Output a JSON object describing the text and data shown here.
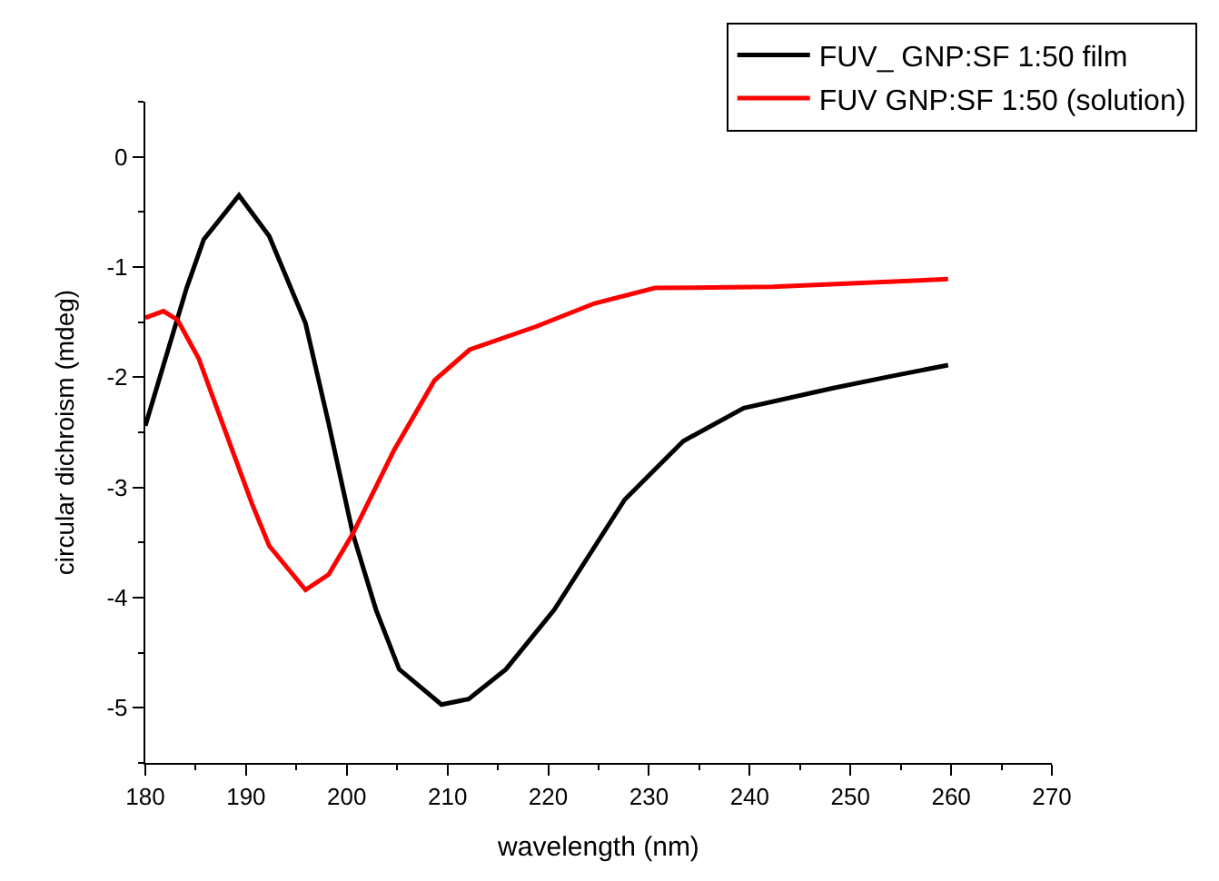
{
  "chart_data": {
    "type": "line",
    "xlabel": "wavelength (nm)",
    "ylabel": "circular dichroism (mdeg)",
    "xlim": [
      180,
      270
    ],
    "xticks": [
      180,
      190,
      200,
      210,
      220,
      230,
      240,
      250,
      260,
      270
    ],
    "ylim": [
      -5.5,
      0.5
    ],
    "yticks": [
      -5,
      -4,
      -3,
      -2,
      -1,
      0
    ],
    "legend": "top right",
    "line_style": "solid",
    "marker": "none",
    "series": [
      {
        "name": "FUV_ GNP:SF 1:50 film",
        "color": "#000000",
        "x": [
          180,
          184.1,
          185.8,
          189.3,
          192.3,
          195.9,
          198.2,
          200.6,
          202.9,
          205.2,
          209.4,
          212.1,
          215.8,
          220.6,
          227.6,
          233.4,
          239.4,
          248.2,
          254.1,
          259.7
        ],
        "values": [
          -2.44,
          -1.19,
          -0.75,
          -0.35,
          -0.72,
          -1.51,
          -2.42,
          -3.42,
          -4.11,
          -4.65,
          -4.97,
          -4.92,
          -4.65,
          -4.11,
          -3.11,
          -2.58,
          -2.28,
          -2.1,
          -1.99,
          -1.89
        ]
      },
      {
        "name": "FUV GNP:SF 1:50 (solution)",
        "color": "#ff0000",
        "x": [
          180,
          181.8,
          183.2,
          185.3,
          188.3,
          190.6,
          192.3,
          195.9,
          198.2,
          200.6,
          204.7,
          208.7,
          212.2,
          218.8,
          224.6,
          230.6,
          242.3,
          259.7
        ],
        "values": [
          -1.46,
          -1.4,
          -1.48,
          -1.83,
          -2.58,
          -3.15,
          -3.53,
          -3.93,
          -3.79,
          -3.42,
          -2.66,
          -2.03,
          -1.75,
          -1.54,
          -1.33,
          -1.19,
          -1.18,
          -1.11
        ]
      }
    ]
  }
}
